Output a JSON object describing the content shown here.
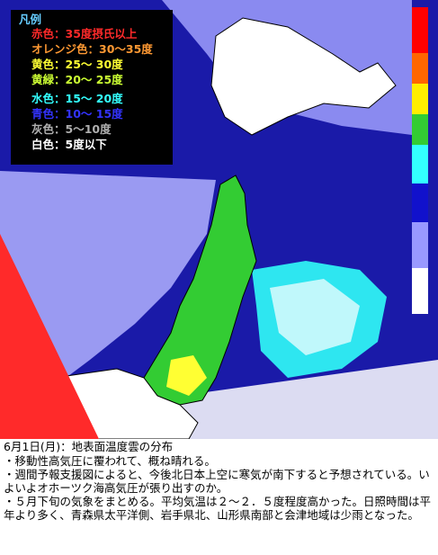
{
  "legend": {
    "title": "凡例",
    "items": [
      {
        "label": "赤色：35度摂氏以上",
        "color": "#ff2a2a"
      },
      {
        "label": "オレンジ色：30～35度",
        "color": "#ff9933"
      },
      {
        "label": "黄色：25～ 30度",
        "color": "#ffff33"
      },
      {
        "label": "黄緑：20～ 25度",
        "color": "#ccff33"
      },
      {
        "label": "水色：15～ 20度",
        "color": "#33ffff"
      },
      {
        "label": "青色：10～ 15度",
        "color": "#3333ff"
      },
      {
        "label": "灰色：5～10度",
        "color": "#b0b0b0"
      },
      {
        "label": "白色：5度以下",
        "color": "#ffffff"
      }
    ]
  },
  "scale_colors": [
    "#ff0000",
    "#ff6600",
    "#ffee00",
    "#33cc33",
    "#33ffff",
    "#1111cc",
    "#9999ff",
    "#ffffff"
  ],
  "caption": {
    "title": "6月1日(月)：地表面温度雲の分布",
    "bullets": [
      "・移動性高気圧に覆われて、概ね晴れる。",
      "・週間予報支援図によると、今後北日本上空に寒気が南下すると予想されている。いよいよオホーツク海高気圧が張り出すのか。",
      "・５月下旬の気象をまとめる。平均気温は２～２．５度程度高かった。日照時間は平年より多く、青森県太平洋側、岩手県北、山形県南部と会津地域は少雨となった。"
    ]
  }
}
